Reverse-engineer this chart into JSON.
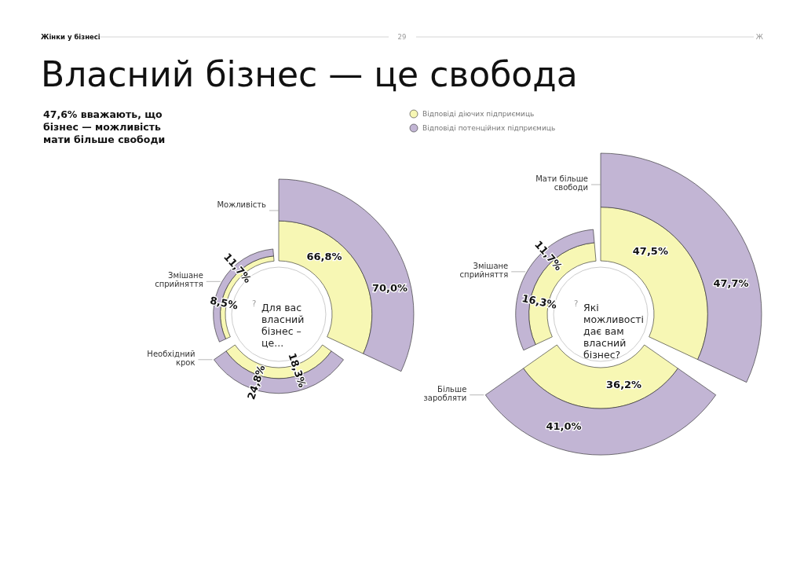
{
  "chart_data": [
    {
      "type": "other",
      "title": "Власний бізнес — це свобода",
      "subtitle": "47,6% вважають, що бізнес — можливість мати більше свободи",
      "annotations": [
        "Жінки у бізнесі",
        "29",
        "Ж",
        "?",
        "Для вас власний бізнес – це..."
      ],
      "categories": [
        "Можливість",
        "Змішане сприйняття",
        "Необхідний крок"
      ],
      "series": [
        {
          "color": "#f7f7b4",
          "values": [
            66.8,
            8.5,
            18.3
          ],
          "value_labels": [
            "66,8%",
            "8,5%",
            "18,3%"
          ]
        },
        {
          "color": "#c2b5d4",
          "values": [
            70.0,
            11.7,
            24.8
          ],
          "value_labels": [
            "70,0%",
            "11,7%",
            "24,8%"
          ]
        }
      ]
    },
    {
      "type": "other",
      "legend": "top left",
      "annotations": [
        "?",
        "Які можливості дає вам власний бізнес?"
      ],
      "categories": [
        "Мати більше свободи",
        "Змішане сприйняття",
        "Більше заробляти"
      ],
      "series": [
        {
          "name": "Відповіді діючих підприємиць",
          "color": "#f7f7b4",
          "values": [
            47.5,
            16.3,
            36.2
          ],
          "value_labels": [
            "47,5%",
            "16,3%",
            "36,2%"
          ]
        },
        {
          "name": "Відповіді потенційних підприємиць",
          "color": "#c2b5d4",
          "values": [
            47.7,
            11.7,
            41.0
          ],
          "value_labels": [
            "47,7%",
            "11,7%",
            "41,0%"
          ]
        }
      ]
    }
  ]
}
